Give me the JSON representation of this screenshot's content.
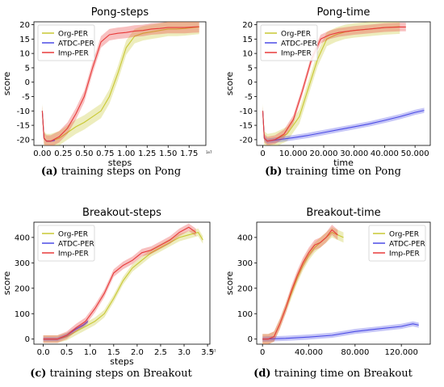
{
  "series_colors": {
    "org": "#c8c832",
    "atdc": "#4c4ce6",
    "imp": "#e83a3a"
  },
  "captions": [
    {
      "letter": "(a)",
      "text": "training steps on Pong"
    },
    {
      "letter": "(b)",
      "text": "training time on Pong"
    },
    {
      "letter": "(c)",
      "text": "training steps on Breakout"
    },
    {
      "letter": "(d)",
      "text": "training time on Breakout"
    }
  ],
  "chart_data": [
    {
      "type": "line",
      "title": "Pong-steps",
      "xlabel": "steps",
      "ylabel": "score",
      "x_scale_note": "1e7",
      "xlim": [
        -0.1,
        1.95
      ],
      "ylim": [
        -22,
        21
      ],
      "xticks": [
        0.0,
        0.25,
        0.5,
        0.75,
        1.0,
        1.25,
        1.5,
        1.75
      ],
      "xtick_labels": [
        "0.00",
        "0.25",
        "0.50",
        "0.75",
        "1.00",
        "1.25",
        "1.50",
        "1.75"
      ],
      "yticks": [
        -20,
        -15,
        -10,
        -5,
        0,
        5,
        10,
        15,
        20
      ],
      "legend": [
        "Org-PER",
        "ATDC-PER",
        "Imp-PER"
      ],
      "legend_position": "top-left",
      "series": [
        {
          "name": "Org-PER",
          "band": 2.5,
          "x": [
            0.0,
            0.02,
            0.05,
            0.1,
            0.2,
            0.3,
            0.4,
            0.5,
            0.6,
            0.7,
            0.8,
            0.9,
            1.0,
            1.1,
            1.2,
            1.3,
            1.4,
            1.5,
            1.6,
            1.7,
            1.8,
            1.87
          ],
          "y": [
            -10,
            -19.5,
            -20.5,
            -20.5,
            -19.5,
            -17.5,
            -15.5,
            -14,
            -12,
            -10,
            -5,
            3,
            12,
            16,
            17,
            17.5,
            18,
            18.5,
            18.5,
            18.7,
            19,
            19.2
          ]
        },
        {
          "name": "ATDC-PER",
          "band": 0.3,
          "x": [
            0.0,
            0.02,
            0.05,
            0.1,
            0.15
          ],
          "y": [
            -10,
            -19.5,
            -20.5,
            -20.5,
            -20.2
          ]
        },
        {
          "name": "Imp-PER",
          "band": 2.0,
          "x": [
            0.0,
            0.02,
            0.05,
            0.1,
            0.2,
            0.3,
            0.4,
            0.5,
            0.6,
            0.7,
            0.8,
            0.9,
            1.0,
            1.1,
            1.2,
            1.3,
            1.4,
            1.5,
            1.6,
            1.7,
            1.8,
            1.87
          ],
          "y": [
            -10,
            -19.5,
            -20.5,
            -20.5,
            -19,
            -16,
            -11,
            -5,
            5,
            14,
            16.5,
            17,
            17.3,
            17.8,
            18,
            18.5,
            18.7,
            19,
            19,
            19,
            19.2,
            19.3
          ]
        }
      ]
    },
    {
      "type": "line",
      "title": "Pong-time",
      "xlabel": "time",
      "ylabel": "score",
      "x_scale_note": "",
      "xlim": [
        -2000,
        55000
      ],
      "ylim": [
        -22,
        21
      ],
      "xticks": [
        0,
        10000,
        20000,
        30000,
        40000,
        50000
      ],
      "xtick_labels": [
        "0",
        "10.000",
        "20.000",
        "30.000",
        "40.000",
        "50.000"
      ],
      "yticks": [
        -20,
        -15,
        -10,
        -5,
        0,
        5,
        10,
        15,
        20
      ],
      "legend": [
        "Org-PER",
        "ATDC-PER",
        "Imp-PER"
      ],
      "legend_position": "top-left",
      "series": [
        {
          "name": "Org-PER",
          "band": 2.5,
          "x": [
            0,
            500,
            1500,
            4000,
            8000,
            12000,
            15000,
            18000,
            21000,
            24000,
            27000,
            30000,
            35000,
            40000,
            45000
          ],
          "y": [
            -10,
            -19.5,
            -20.5,
            -20,
            -18,
            -12,
            -2,
            8,
            15,
            16.5,
            17.5,
            18,
            18.5,
            19,
            19.3
          ]
        },
        {
          "name": "ATDC-PER",
          "band": 0.9,
          "x": [
            0,
            500,
            1500,
            5000,
            10000,
            15000,
            20000,
            25000,
            30000,
            35000,
            40000,
            45000,
            50000,
            53000
          ],
          "y": [
            -10,
            -19.5,
            -20.5,
            -20,
            -19.3,
            -18.5,
            -17.5,
            -16.5,
            -15.5,
            -14.5,
            -13.3,
            -12,
            -10.5,
            -9.8
          ]
        },
        {
          "name": "Imp-PER",
          "band": 1.5,
          "x": [
            0,
            500,
            1500,
            4000,
            7000,
            10000,
            13000,
            16000,
            19000,
            22000,
            25000,
            30000,
            35000,
            40000,
            45000,
            47000
          ],
          "y": [
            -10,
            -19.5,
            -20.5,
            -20,
            -18,
            -13,
            -3,
            8,
            15,
            16.5,
            17.3,
            18,
            18.5,
            19,
            19.2,
            19.2
          ]
        }
      ]
    },
    {
      "type": "line",
      "title": "Breakout-steps",
      "xlabel": "steps",
      "ylabel": "score",
      "x_scale_note": "1e7",
      "xlim": [
        -0.2,
        3.55
      ],
      "ylim": [
        -20,
        460
      ],
      "xticks": [
        0.0,
        0.5,
        1.0,
        1.5,
        2.0,
        2.5,
        3.0,
        3.5
      ],
      "xtick_labels": [
        "0.0",
        "0.5",
        "1.0",
        "1.5",
        "2.0",
        "2.5",
        "3.0",
        "3.5"
      ],
      "yticks": [
        0,
        100,
        200,
        300,
        400
      ],
      "legend": [
        "Org-PER",
        "ATDC-PER",
        "Imp-PER"
      ],
      "legend_position": "top-left",
      "series": [
        {
          "name": "Org-PER",
          "band": 15,
          "x": [
            0.0,
            0.3,
            0.5,
            0.7,
            0.9,
            1.1,
            1.3,
            1.5,
            1.7,
            1.9,
            2.1,
            2.3,
            2.5,
            2.7,
            2.9,
            3.1,
            3.3,
            3.4
          ],
          "y": [
            0,
            0,
            10,
            30,
            50,
            70,
            100,
            160,
            230,
            280,
            310,
            340,
            360,
            380,
            400,
            410,
            420,
            390
          ]
        },
        {
          "name": "ATDC-PER",
          "band": 8,
          "x": [
            0.0,
            0.3,
            0.5,
            0.7,
            0.85,
            0.95
          ],
          "y": [
            0,
            0,
            15,
            40,
            55,
            70
          ]
        },
        {
          "name": "Imp-PER",
          "band": 15,
          "x": [
            0.0,
            0.3,
            0.5,
            0.7,
            0.9,
            1.1,
            1.3,
            1.5,
            1.7,
            1.9,
            2.1,
            2.3,
            2.5,
            2.7,
            2.9,
            3.1,
            3.25
          ],
          "y": [
            0,
            0,
            15,
            45,
            70,
            120,
            180,
            260,
            290,
            310,
            340,
            350,
            370,
            390,
            420,
            440,
            420
          ]
        }
      ]
    },
    {
      "type": "line",
      "title": "Breakout-time",
      "xlabel": "",
      "ylabel": "score",
      "x_scale_note": "",
      "xlim": [
        -5000,
        145000
      ],
      "ylim": [
        -20,
        460
      ],
      "xticks": [
        0,
        40000,
        80000,
        120000
      ],
      "xtick_labels": [
        "0",
        "40.000",
        "80.000",
        "120.000"
      ],
      "yticks": [
        0,
        100,
        200,
        300,
        400
      ],
      "legend": [
        "Org-PER",
        "ATDC-PER",
        "Imp-PER"
      ],
      "legend_position": "top-right",
      "series": [
        {
          "name": "Org-PER",
          "band": 20,
          "x": [
            0,
            5000,
            10000,
            15000,
            20000,
            25000,
            30000,
            35000,
            40000,
            45000,
            50000,
            55000,
            60000,
            65000,
            70000
          ],
          "y": [
            0,
            0,
            10,
            60,
            120,
            180,
            240,
            290,
            330,
            360,
            380,
            400,
            420,
            410,
            400
          ]
        },
        {
          "name": "ATDC-PER",
          "band": 10,
          "x": [
            0,
            20000,
            40000,
            60000,
            80000,
            100000,
            120000,
            130000,
            135000
          ],
          "y": [
            0,
            3,
            8,
            15,
            30,
            40,
            50,
            60,
            55
          ]
        },
        {
          "name": "Imp-PER",
          "band": 20,
          "x": [
            0,
            5000,
            10000,
            15000,
            20000,
            25000,
            30000,
            35000,
            40000,
            45000,
            50000,
            55000,
            60000,
            65000
          ],
          "y": [
            0,
            0,
            10,
            60,
            120,
            190,
            250,
            300,
            340,
            370,
            380,
            400,
            430,
            410
          ]
        }
      ]
    }
  ]
}
